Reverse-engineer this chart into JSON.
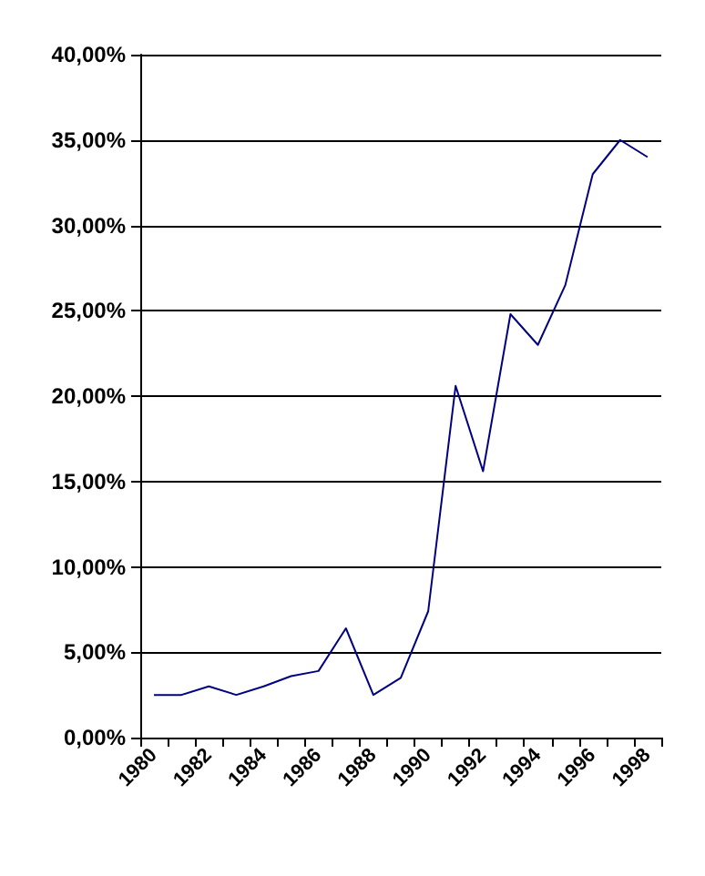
{
  "chart_data": {
    "type": "line",
    "categories": [
      "1980",
      null,
      "1982",
      null,
      "1984",
      null,
      "1986",
      null,
      "1988",
      null,
      "1990",
      null,
      "1992",
      null,
      "1994",
      null,
      "1996",
      null,
      "1998"
    ],
    "series": [
      {
        "color": "#000080",
        "values": [
          2.5,
          2.5,
          3.0,
          2.5,
          3.0,
          3.6,
          3.9,
          6.4,
          2.5,
          3.5,
          7.4,
          20.6,
          15.6,
          24.8,
          23.0,
          26.5,
          33.0,
          35.0,
          34.0
        ]
      }
    ],
    "ylim": [
      0,
      40
    ],
    "yticks": [
      {
        "value": 0,
        "label": "0,00%"
      },
      {
        "value": 5,
        "label": "5,00%"
      },
      {
        "value": 10,
        "label": "10,00%"
      },
      {
        "value": 15,
        "label": "15,00%"
      },
      {
        "value": 20,
        "label": "20,00%"
      },
      {
        "value": 25,
        "label": "25,00%"
      },
      {
        "value": 30,
        "label": "30,00%"
      },
      {
        "value": 35,
        "label": "35,00%"
      },
      {
        "value": 40,
        "label": "40,00%"
      }
    ],
    "grid": "y",
    "marker": "none",
    "line_style": "solid"
  }
}
